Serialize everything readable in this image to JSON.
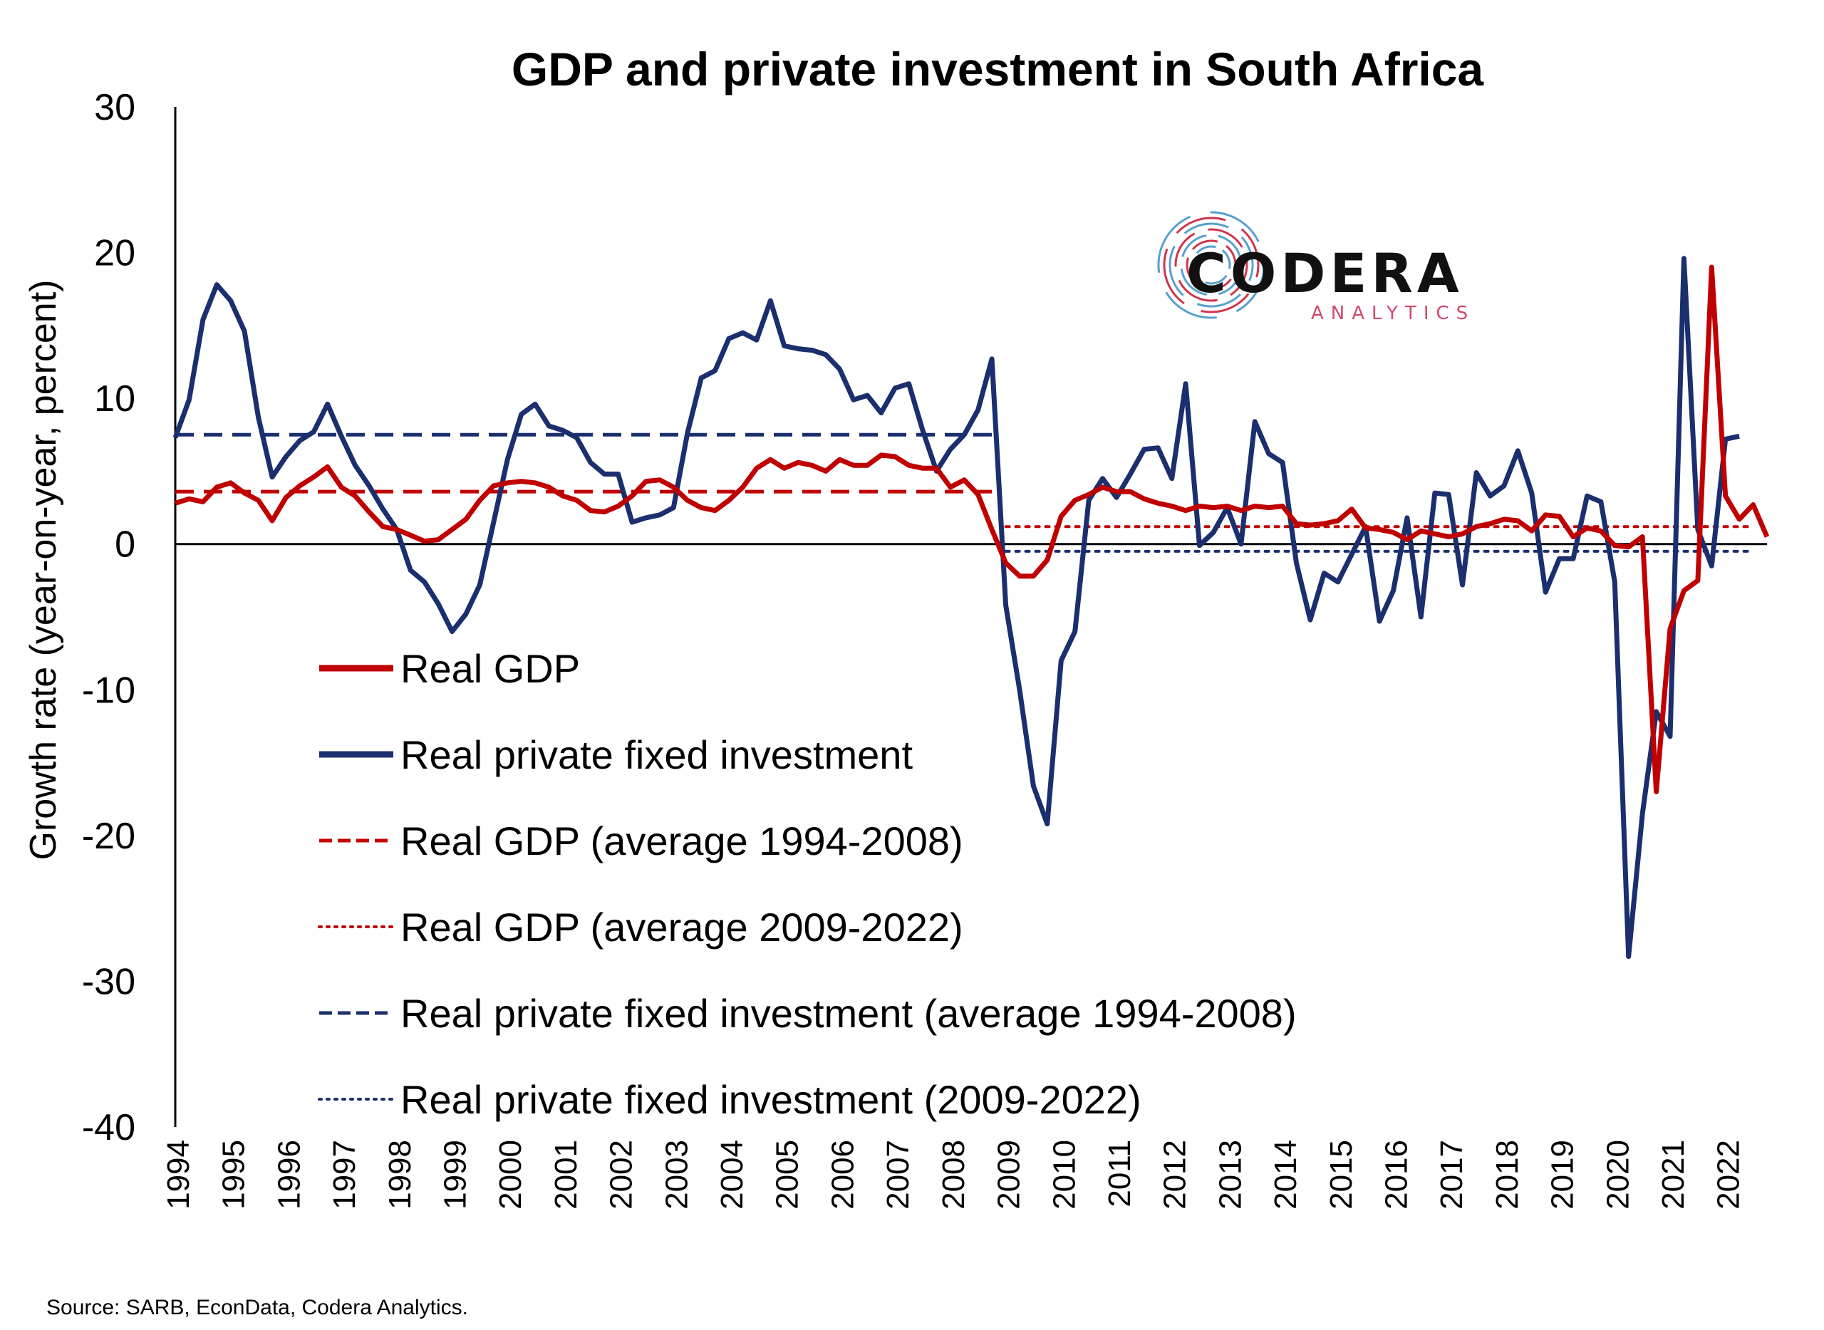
{
  "chart_data": {
    "type": "line",
    "title": "GDP and private investment in South Africa",
    "ylabel": "Growth rate (year-on-year, percent)",
    "xlabel": "",
    "ylim": [
      -40,
      30
    ],
    "yticks": [
      "30",
      "20",
      "10",
      "0",
      "-10",
      "-20",
      "-30",
      "-40"
    ],
    "xticks": [
      "1994",
      "1995",
      "1996",
      "1997",
      "1998",
      "1999",
      "2000",
      "2001",
      "2002",
      "2003",
      "2004",
      "2005",
      "2006",
      "2007",
      "2008",
      "2009",
      "2010",
      "2011",
      "2012",
      "2013",
      "2014",
      "2015",
      "2016",
      "2017",
      "2018",
      "2019",
      "2020",
      "2021",
      "2022"
    ],
    "grid": false,
    "legend_position": "lower-left",
    "series": [
      {
        "name": "Real GDP",
        "color": "#c00000",
        "style": "solid",
        "points": [
          [
            1994.0,
            2.8
          ],
          [
            1994.25,
            3.1
          ],
          [
            1994.5,
            2.9
          ],
          [
            1994.75,
            3.9
          ],
          [
            1995.0,
            4.2
          ],
          [
            1995.25,
            3.5
          ],
          [
            1995.5,
            3.0
          ],
          [
            1995.75,
            1.6
          ],
          [
            1996.0,
            3.2
          ],
          [
            1996.25,
            4.0
          ],
          [
            1996.5,
            4.6
          ],
          [
            1996.75,
            5.3
          ],
          [
            1997.0,
            3.9
          ],
          [
            1997.25,
            3.3
          ],
          [
            1997.5,
            2.2
          ],
          [
            1997.75,
            1.2
          ],
          [
            1998.0,
            1.0
          ],
          [
            1998.25,
            0.6
          ],
          [
            1998.5,
            0.2
          ],
          [
            1998.75,
            0.3
          ],
          [
            1999.0,
            1.0
          ],
          [
            1999.25,
            1.7
          ],
          [
            1999.5,
            3.0
          ],
          [
            1999.75,
            4.0
          ],
          [
            2000.0,
            4.2
          ],
          [
            2000.25,
            4.3
          ],
          [
            2000.5,
            4.2
          ],
          [
            2000.75,
            3.9
          ],
          [
            2001.0,
            3.3
          ],
          [
            2001.25,
            3.0
          ],
          [
            2001.5,
            2.3
          ],
          [
            2001.75,
            2.2
          ],
          [
            2002.0,
            2.6
          ],
          [
            2002.25,
            3.3
          ],
          [
            2002.5,
            4.3
          ],
          [
            2002.75,
            4.4
          ],
          [
            2003.0,
            3.9
          ],
          [
            2003.25,
            3.0
          ],
          [
            2003.5,
            2.5
          ],
          [
            2003.75,
            2.3
          ],
          [
            2004.0,
            3.0
          ],
          [
            2004.25,
            3.9
          ],
          [
            2004.5,
            5.2
          ],
          [
            2004.75,
            5.8
          ],
          [
            2005.0,
            5.2
          ],
          [
            2005.25,
            5.6
          ],
          [
            2005.5,
            5.4
          ],
          [
            2005.75,
            5.0
          ],
          [
            2006.0,
            5.8
          ],
          [
            2006.25,
            5.4
          ],
          [
            2006.5,
            5.4
          ],
          [
            2006.75,
            6.1
          ],
          [
            2007.0,
            6.0
          ],
          [
            2007.25,
            5.4
          ],
          [
            2007.5,
            5.2
          ],
          [
            2007.75,
            5.2
          ],
          [
            2008.0,
            3.9
          ],
          [
            2008.25,
            4.4
          ],
          [
            2008.5,
            3.4
          ],
          [
            2008.75,
            1.0
          ],
          [
            2009.0,
            -1.3
          ],
          [
            2009.25,
            -2.2
          ],
          [
            2009.5,
            -2.2
          ],
          [
            2009.75,
            -1.1
          ],
          [
            2010.0,
            1.9
          ],
          [
            2010.25,
            3.0
          ],
          [
            2010.5,
            3.4
          ],
          [
            2010.75,
            3.9
          ],
          [
            2011.0,
            3.6
          ],
          [
            2011.25,
            3.6
          ],
          [
            2011.5,
            3.1
          ],
          [
            2011.75,
            2.8
          ],
          [
            2012.0,
            2.6
          ],
          [
            2012.25,
            2.3
          ],
          [
            2012.5,
            2.6
          ],
          [
            2012.75,
            2.5
          ],
          [
            2013.0,
            2.6
          ],
          [
            2013.25,
            2.3
          ],
          [
            2013.5,
            2.6
          ],
          [
            2013.75,
            2.5
          ],
          [
            2014.0,
            2.6
          ],
          [
            2014.25,
            1.4
          ],
          [
            2014.5,
            1.3
          ],
          [
            2014.75,
            1.4
          ],
          [
            2015.0,
            1.6
          ],
          [
            2015.25,
            2.4
          ],
          [
            2015.5,
            1.1
          ],
          [
            2015.75,
            1.0
          ],
          [
            2016.0,
            0.8
          ],
          [
            2016.25,
            0.3
          ],
          [
            2016.5,
            0.9
          ],
          [
            2016.75,
            0.7
          ],
          [
            2017.0,
            0.5
          ],
          [
            2017.25,
            0.7
          ],
          [
            2017.5,
            1.2
          ],
          [
            2017.75,
            1.4
          ],
          [
            2018.0,
            1.7
          ],
          [
            2018.25,
            1.6
          ],
          [
            2018.5,
            0.9
          ],
          [
            2018.75,
            2.0
          ],
          [
            2019.0,
            1.9
          ],
          [
            2019.25,
            0.5
          ],
          [
            2019.5,
            1.1
          ],
          [
            2019.75,
            0.9
          ],
          [
            2020.0,
            -0.1
          ],
          [
            2020.25,
            -0.2
          ],
          [
            2020.5,
            0.5
          ],
          [
            2020.75,
            -17.0
          ],
          [
            2021.0,
            -5.8
          ],
          [
            2021.25,
            -3.2
          ],
          [
            2021.5,
            -2.5
          ],
          [
            2021.75,
            19.0
          ],
          [
            2022.0,
            3.3
          ],
          [
            2022.25,
            1.7
          ],
          [
            2022.5,
            2.7
          ],
          [
            2022.75,
            0.5
          ]
        ]
      },
      {
        "name": "Real private fixed investment",
        "color": "#1b2f6e",
        "style": "solid",
        "points": [
          [
            1994.0,
            7.3
          ],
          [
            1994.25,
            9.9
          ],
          [
            1994.5,
            15.4
          ],
          [
            1994.75,
            17.8
          ],
          [
            1995.0,
            16.7
          ],
          [
            1995.25,
            14.6
          ],
          [
            1995.5,
            8.7
          ],
          [
            1995.75,
            4.6
          ],
          [
            1996.0,
            6.0
          ],
          [
            1996.25,
            7.1
          ],
          [
            1996.5,
            7.7
          ],
          [
            1996.75,
            9.6
          ],
          [
            1997.0,
            7.4
          ],
          [
            1997.25,
            5.4
          ],
          [
            1997.5,
            4.0
          ],
          [
            1997.75,
            2.4
          ],
          [
            1998.0,
            1.0
          ],
          [
            1998.25,
            -1.8
          ],
          [
            1998.5,
            -2.6
          ],
          [
            1998.75,
            -4.1
          ],
          [
            1999.0,
            -6.0
          ],
          [
            1999.25,
            -4.8
          ],
          [
            1999.5,
            -2.8
          ],
          [
            1999.75,
            1.5
          ],
          [
            2000.0,
            5.8
          ],
          [
            2000.25,
            8.9
          ],
          [
            2000.5,
            9.6
          ],
          [
            2000.75,
            8.1
          ],
          [
            2001.0,
            7.8
          ],
          [
            2001.25,
            7.3
          ],
          [
            2001.5,
            5.6
          ],
          [
            2001.75,
            4.8
          ],
          [
            2002.0,
            4.8
          ],
          [
            2002.25,
            1.5
          ],
          [
            2002.5,
            1.8
          ],
          [
            2002.75,
            2.0
          ],
          [
            2003.0,
            2.5
          ],
          [
            2003.25,
            7.6
          ],
          [
            2003.5,
            11.4
          ],
          [
            2003.75,
            11.9
          ],
          [
            2004.0,
            14.1
          ],
          [
            2004.25,
            14.5
          ],
          [
            2004.5,
            14.0
          ],
          [
            2004.75,
            16.7
          ],
          [
            2005.0,
            13.6
          ],
          [
            2005.25,
            13.4
          ],
          [
            2005.5,
            13.3
          ],
          [
            2005.75,
            13.0
          ],
          [
            2006.0,
            12.0
          ],
          [
            2006.25,
            9.9
          ],
          [
            2006.5,
            10.2
          ],
          [
            2006.75,
            9.0
          ],
          [
            2007.0,
            10.7
          ],
          [
            2007.25,
            11.0
          ],
          [
            2007.5,
            7.8
          ],
          [
            2007.75,
            5.0
          ],
          [
            2008.0,
            6.5
          ],
          [
            2008.25,
            7.5
          ],
          [
            2008.5,
            9.2
          ],
          [
            2008.75,
            12.7
          ],
          [
            2009.0,
            -4.2
          ],
          [
            2009.25,
            -10.0
          ],
          [
            2009.5,
            -16.6
          ],
          [
            2009.75,
            -19.2
          ],
          [
            2010.0,
            -8.0
          ],
          [
            2010.25,
            -6.0
          ],
          [
            2010.5,
            3.0
          ],
          [
            2010.75,
            4.5
          ],
          [
            2011.0,
            3.2
          ],
          [
            2011.25,
            4.8
          ],
          [
            2011.5,
            6.5
          ],
          [
            2011.75,
            6.6
          ],
          [
            2012.0,
            4.5
          ],
          [
            2012.25,
            11.0
          ],
          [
            2012.5,
            -0.1
          ],
          [
            2012.75,
            0.8
          ],
          [
            2013.0,
            2.5
          ],
          [
            2013.25,
            0.0
          ],
          [
            2013.5,
            8.4
          ],
          [
            2013.75,
            6.2
          ],
          [
            2014.0,
            5.6
          ],
          [
            2014.25,
            -1.3
          ],
          [
            2014.5,
            -5.2
          ],
          [
            2014.75,
            -2.0
          ],
          [
            2015.0,
            -2.6
          ],
          [
            2015.25,
            -0.7
          ],
          [
            2015.5,
            1.2
          ],
          [
            2015.75,
            -5.3
          ],
          [
            2016.0,
            -3.2
          ],
          [
            2016.25,
            1.8
          ],
          [
            2016.5,
            -5.0
          ],
          [
            2016.75,
            3.5
          ],
          [
            2017.0,
            3.4
          ],
          [
            2017.25,
            -2.8
          ],
          [
            2017.5,
            4.9
          ],
          [
            2017.75,
            3.3
          ],
          [
            2018.0,
            4.0
          ],
          [
            2018.25,
            6.4
          ],
          [
            2018.5,
            3.5
          ],
          [
            2018.75,
            -3.3
          ],
          [
            2019.0,
            -1.0
          ],
          [
            2019.25,
            -1.0
          ],
          [
            2019.5,
            3.3
          ],
          [
            2019.75,
            2.9
          ],
          [
            2020.0,
            -2.6
          ],
          [
            2020.25,
            -28.3
          ],
          [
            2020.5,
            -18.5
          ],
          [
            2020.75,
            -11.5
          ],
          [
            2021.0,
            -13.2
          ],
          [
            2021.25,
            19.6
          ],
          [
            2021.5,
            1.0
          ],
          [
            2021.75,
            -1.5
          ],
          [
            2022.0,
            7.2
          ],
          [
            2022.25,
            7.4
          ]
        ]
      },
      {
        "name": "Real GDP (average 1994-2008)",
        "color": "#c00000",
        "style": "dashed",
        "points": [
          [
            1994.0,
            3.6
          ],
          [
            2008.75,
            3.6
          ]
        ]
      },
      {
        "name": "Real GDP (average 2009-2022)",
        "color": "#c00000",
        "style": "dotted",
        "points": [
          [
            2009.0,
            1.2
          ],
          [
            2022.5,
            1.2
          ]
        ]
      },
      {
        "name": "Real private fixed investment (average 1994-2008)",
        "color": "#1b2f6e",
        "style": "dashed",
        "points": [
          [
            1994.0,
            7.5
          ],
          [
            2008.75,
            7.5
          ]
        ]
      },
      {
        "name": "Real private fixed investment (2009-2022)",
        "color": "#1b2f6e",
        "style": "dotted",
        "points": [
          [
            2009.0,
            -0.5
          ],
          [
            2022.5,
            -0.5
          ]
        ]
      }
    ]
  },
  "logo": {
    "name": "CODERA",
    "sub": "ANALYTICS",
    "colors": [
      "#c8102e",
      "#3a8fc7"
    ]
  },
  "source": "Source: SARB, EconData, Codera Analytics."
}
